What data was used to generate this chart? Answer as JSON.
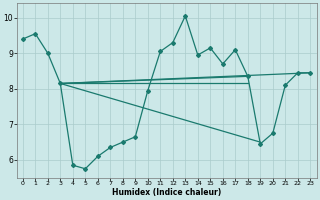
{
  "xlabel": "Humidex (Indice chaleur)",
  "background_color": "#cce8e8",
  "grid_color": "#aacccc",
  "line_color": "#1a7a6e",
  "xlim": [
    -0.5,
    23.5
  ],
  "ylim": [
    5.5,
    10.4
  ],
  "xticks": [
    0,
    1,
    2,
    3,
    4,
    5,
    6,
    7,
    8,
    9,
    10,
    11,
    12,
    13,
    14,
    15,
    16,
    17,
    18,
    19,
    20,
    21,
    22,
    23
  ],
  "yticks": [
    6,
    7,
    8,
    9,
    10
  ],
  "zigzag_x": [
    0,
    1,
    2,
    3,
    4,
    5,
    6,
    7,
    8,
    9,
    10,
    11,
    12,
    13,
    14,
    15,
    16,
    17,
    18,
    19,
    20,
    21,
    22,
    23
  ],
  "zigzag_y": [
    9.4,
    9.55,
    9.0,
    8.15,
    5.85,
    5.75,
    6.1,
    6.35,
    6.5,
    6.65,
    7.95,
    9.05,
    9.3,
    10.05,
    8.95,
    9.15,
    8.7,
    9.1,
    8.35,
    6.45,
    6.75,
    8.1,
    8.45,
    8.45
  ],
  "straight_lines": [
    {
      "x": [
        3,
        23
      ],
      "y": [
        8.15,
        8.45
      ]
    },
    {
      "x": [
        3,
        18
      ],
      "y": [
        8.15,
        8.35
      ]
    },
    {
      "x": [
        3,
        18
      ],
      "y": [
        8.15,
        8.15
      ]
    },
    {
      "x": [
        3,
        19
      ],
      "y": [
        8.15,
        6.5
      ]
    }
  ]
}
